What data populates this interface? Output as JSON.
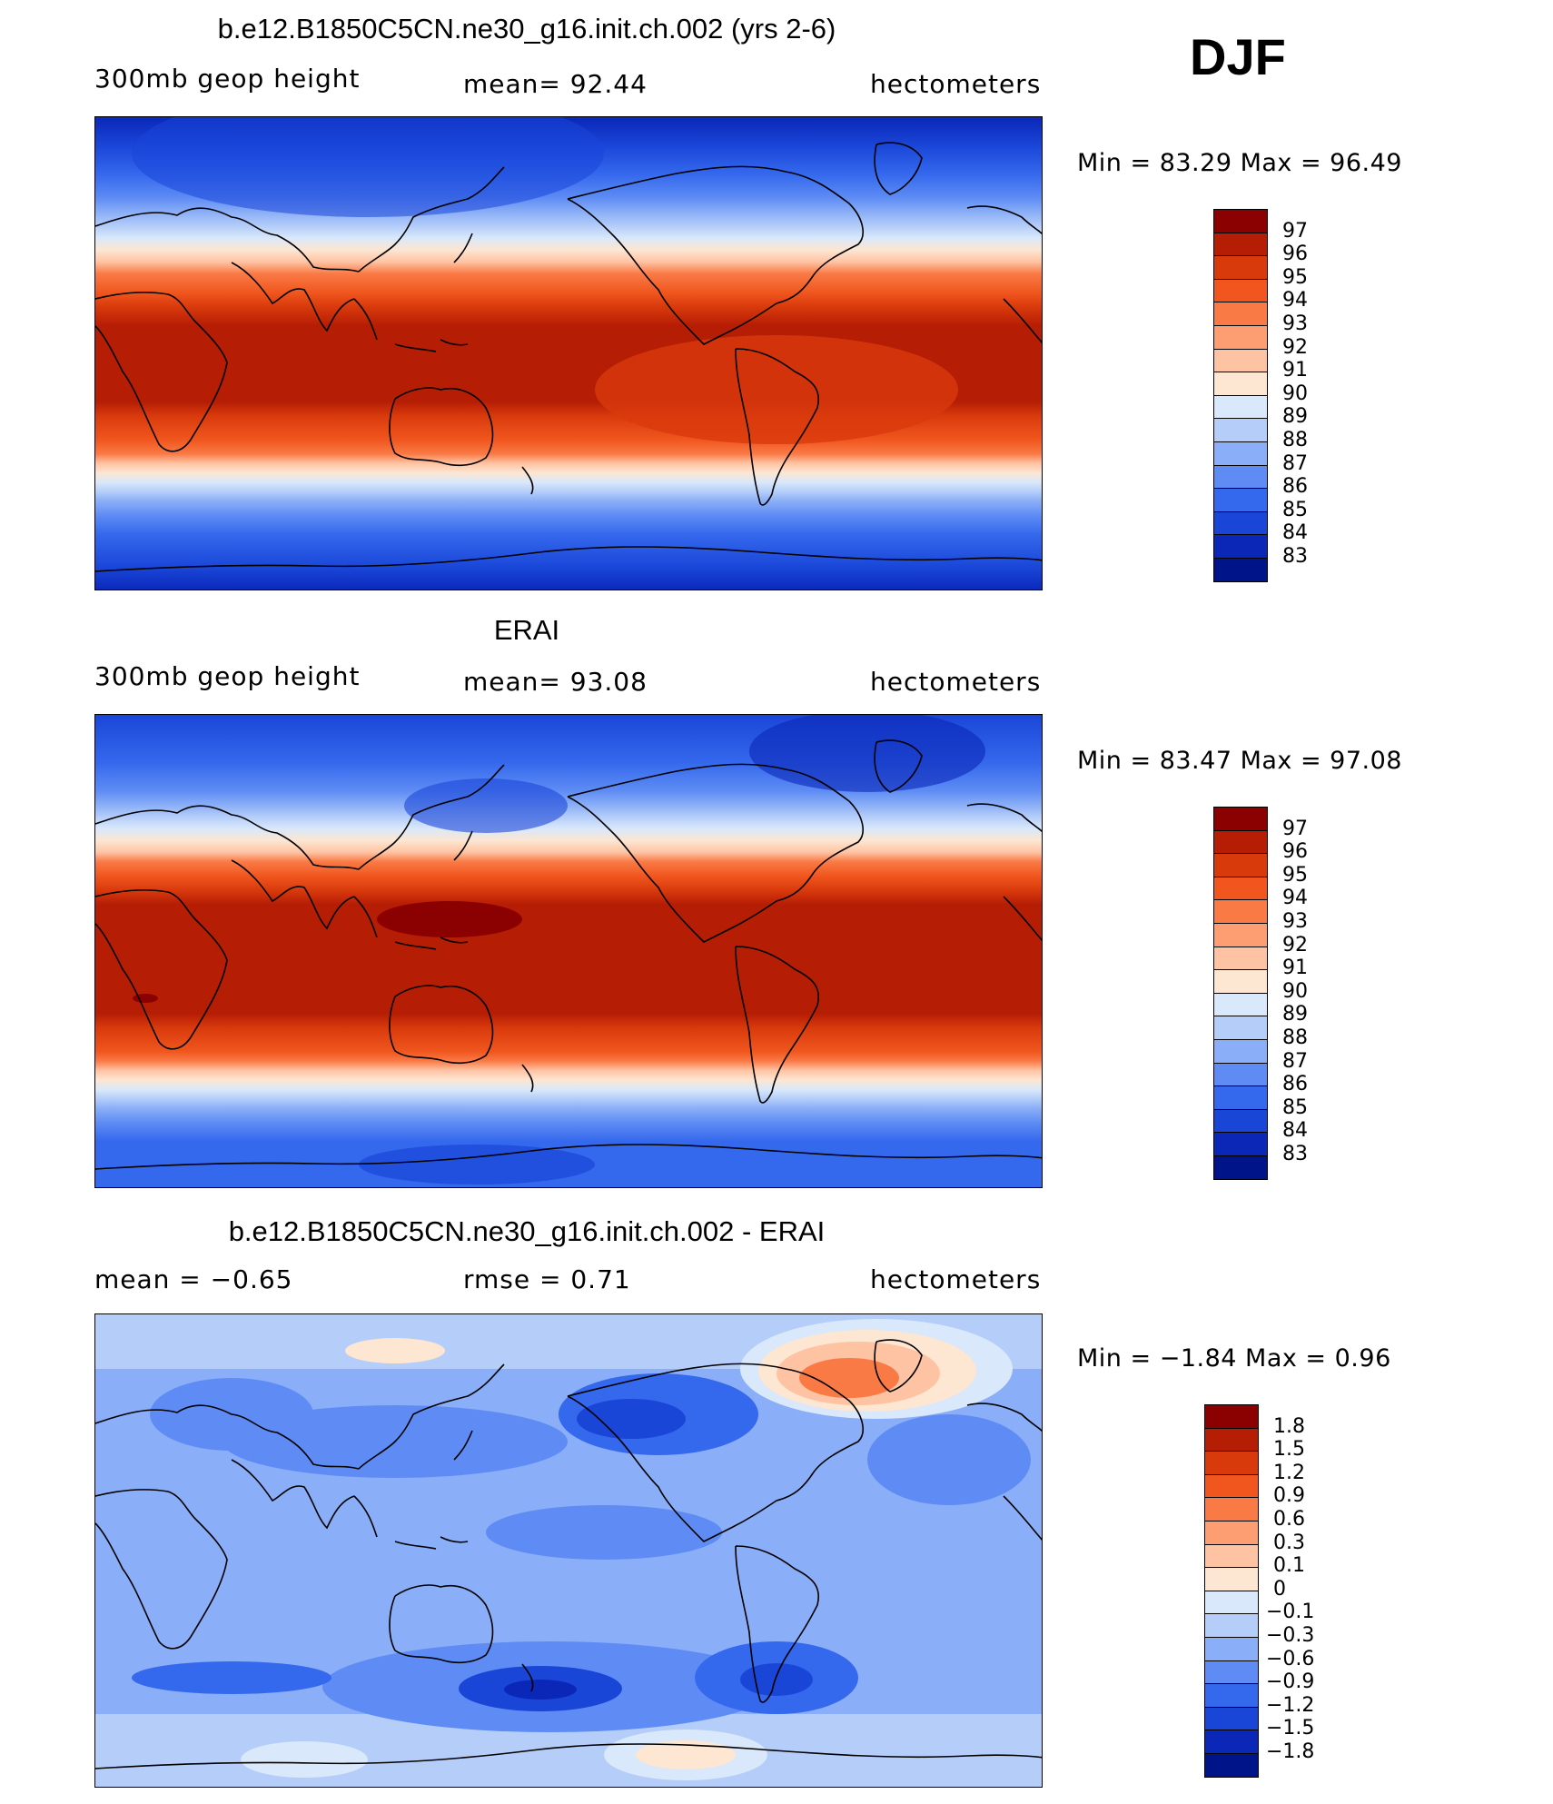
{
  "season": "DJF",
  "panels": [
    {
      "title": "b.e12.B1850C5CN.ne30_g16.init.ch.002 (yrs 2-6)",
      "left_label": "300mb  geop  height",
      "center_label": "mean=   92.44",
      "right_label": "hectometers",
      "minmax": "Min  =    83.29  Max  =    96.49",
      "levels": [
        "97",
        "96",
        "95",
        "94",
        "93",
        "92",
        "91",
        "90",
        "89",
        "88",
        "87",
        "86",
        "85",
        "84",
        "83"
      ]
    },
    {
      "title": "ERAI",
      "left_label": "300mb  geop  height",
      "center_label": "mean=   93.08",
      "right_label": "hectometers",
      "minmax": "Min  =    83.47  Max  =    97.08",
      "levels": [
        "97",
        "96",
        "95",
        "94",
        "93",
        "92",
        "91",
        "90",
        "89",
        "88",
        "87",
        "86",
        "85",
        "84",
        "83"
      ]
    },
    {
      "title": "b.e12.B1850C5CN.ne30_g16.init.ch.002 - ERAI",
      "left_label": "mean  =    −0.65",
      "center_label": "rmse  =     0.71",
      "right_label": "hectometers",
      "minmax": "Min  =   −1.84  Max  =     0.96",
      "levels": [
        "1.8",
        "1.5",
        "1.2",
        "0.9",
        "0.6",
        "0.3",
        "0.1",
        "0",
        "−0.1",
        "−0.3",
        "−0.6",
        "−0.9",
        "−1.2",
        "−1.5",
        "−1.8"
      ]
    }
  ],
  "colorbar_colors": [
    "#8b0000",
    "#b51d05",
    "#d93a0c",
    "#f0561e",
    "#fa7a46",
    "#fc9d72",
    "#fec3a3",
    "#fde6d2",
    "#d9e8fa",
    "#b4cdf9",
    "#8aaef7",
    "#5e8cf4",
    "#3468ed",
    "#1a46d8",
    "#0a27b8",
    "#00148a"
  ]
}
